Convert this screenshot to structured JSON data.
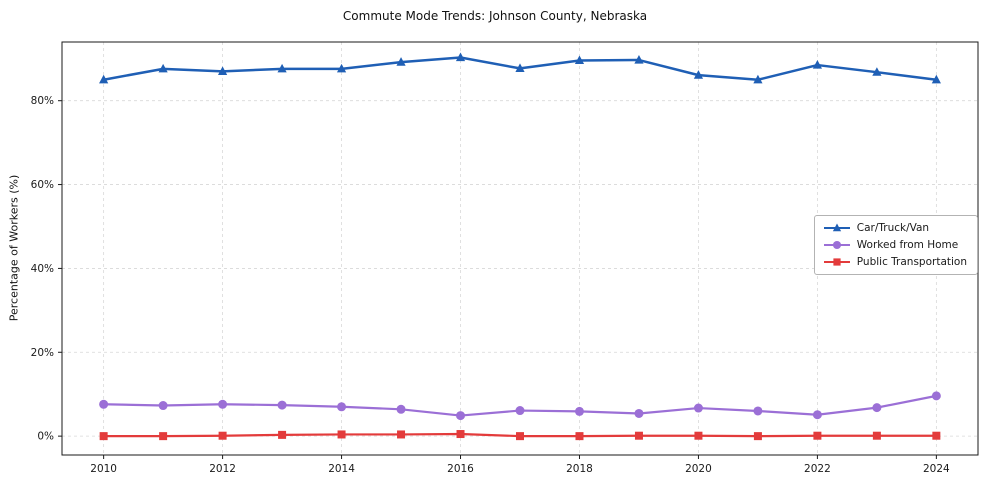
{
  "title": "Commute Mode Trends: Johnson County, Nebraska",
  "chart_data": {
    "type": "line",
    "title": "Commute Mode Trends: Johnson County, Nebraska",
    "xlabel": "",
    "ylabel": "Percentage of Workers (%)",
    "grid": true,
    "grid_style": "dashed",
    "legend_position": "right-middle",
    "x": [
      2010,
      2011,
      2012,
      2013,
      2014,
      2015,
      2016,
      2017,
      2018,
      2019,
      2020,
      2021,
      2022,
      2023,
      2024
    ],
    "x_ticks": [
      2010,
      2012,
      2014,
      2016,
      2018,
      2020,
      2022,
      2024
    ],
    "y_ticks": [
      0,
      20,
      40,
      60,
      80
    ],
    "y_tick_labels": [
      "0%",
      "20%",
      "40%",
      "60%",
      "80%"
    ],
    "xlim": [
      2009.3,
      2024.7
    ],
    "ylim": [
      -4.5,
      94
    ],
    "series": [
      {
        "id": "car-truck-van",
        "name": "Car/Truck/Van",
        "color": "#1f5fb5",
        "marker": "triangle",
        "line_width": 2.5,
        "values": [
          85.0,
          87.6,
          87.0,
          87.6,
          87.6,
          89.2,
          90.3,
          87.7,
          89.6,
          89.7,
          86.1,
          85.0,
          88.5,
          86.8,
          85.0
        ]
      },
      {
        "id": "worked-from-home",
        "name": "Worked from Home",
        "color": "#9b6fd6",
        "marker": "circle",
        "line_width": 2.2,
        "values": [
          7.6,
          7.3,
          7.6,
          7.4,
          7.0,
          6.4,
          4.9,
          6.1,
          5.9,
          5.4,
          6.7,
          6.0,
          5.1,
          6.8,
          9.6
        ]
      },
      {
        "id": "public-transportation",
        "name": "Public Transportation",
        "color": "#e33b3b",
        "marker": "square",
        "line_width": 2.2,
        "values": [
          0.0,
          0.0,
          0.1,
          0.3,
          0.4,
          0.4,
          0.5,
          0.0,
          0.0,
          0.1,
          0.1,
          0.0,
          0.1,
          0.1,
          0.1
        ]
      }
    ]
  }
}
